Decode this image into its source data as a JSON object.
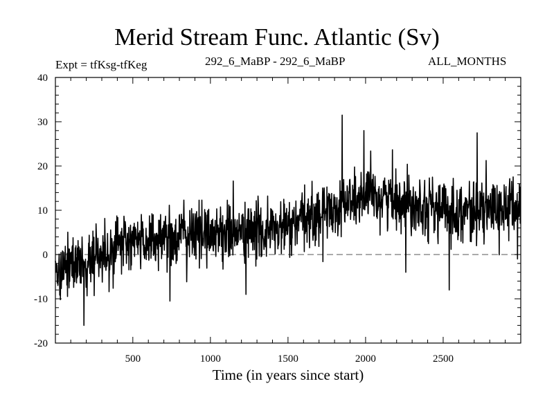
{
  "chart_data": {
    "type": "line",
    "title": "Merid Stream Func. Atlantic (Sv)",
    "subtitle_left": "Expt = tfKsg-tfKeg",
    "subtitle_center": "292_6_MaBP - 292_6_MaBP",
    "subtitle_right": "ALL_MONTHS",
    "xlabel": "Time (in years since start)",
    "ylabel": "",
    "xlim": [
      1,
      3000
    ],
    "ylim": [
      -20,
      40
    ],
    "xticks": [
      500,
      1000,
      1500,
      2000,
      2500
    ],
    "yticks": [
      -20,
      -10,
      0,
      10,
      20,
      30,
      40
    ],
    "reference_line": {
      "y": 0,
      "style": "dashed"
    },
    "series": [
      {
        "name": "Merid Stream Func. Atlantic",
        "trend_knots": [
          [
            1,
            -3
          ],
          [
            200,
            -2
          ],
          [
            400,
            2
          ],
          [
            700,
            4
          ],
          [
            1000,
            5
          ],
          [
            1300,
            5
          ],
          [
            1500,
            6
          ],
          [
            1700,
            9
          ],
          [
            1900,
            12
          ],
          [
            2100,
            13
          ],
          [
            2300,
            12
          ],
          [
            2500,
            10
          ],
          [
            2800,
            10
          ],
          [
            3000,
            11
          ]
        ],
        "noise_sd": 3.3,
        "spikes": [
          [
            1850,
            31.5
          ],
          [
            1990,
            28
          ],
          [
            2540,
            -8
          ],
          [
            185,
            -16
          ],
          [
            740,
            -10.5
          ],
          [
            1230,
            -9
          ],
          [
            2260,
            -4
          ],
          [
            2720,
            27.5
          ],
          [
            2980,
            -1
          ]
        ]
      }
    ]
  }
}
